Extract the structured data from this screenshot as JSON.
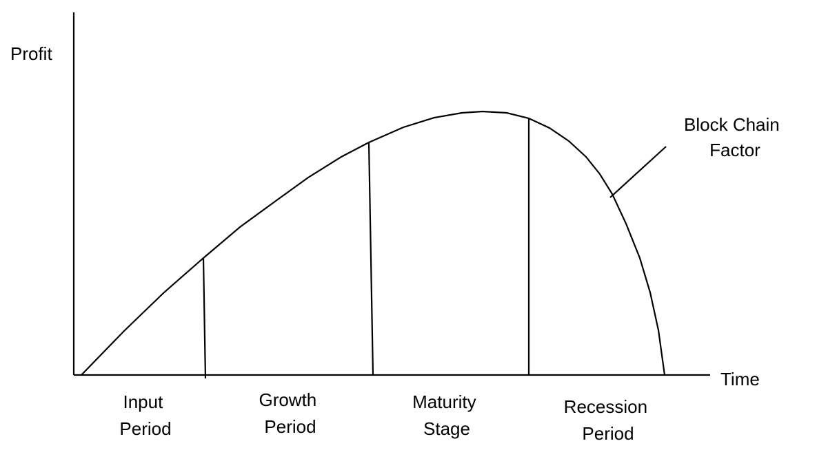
{
  "axes": {
    "y_label": "Profit",
    "x_label": "Time"
  },
  "stages": [
    {
      "line1": "Input",
      "line2": "Period"
    },
    {
      "line1": "Growth",
      "line2": "Period"
    },
    {
      "line1": "Maturity",
      "line2": "Stage"
    },
    {
      "line1": "Recession",
      "line2": "Period"
    }
  ],
  "annotation": {
    "line1": "Block Chain",
    "line2": "Factor"
  }
}
